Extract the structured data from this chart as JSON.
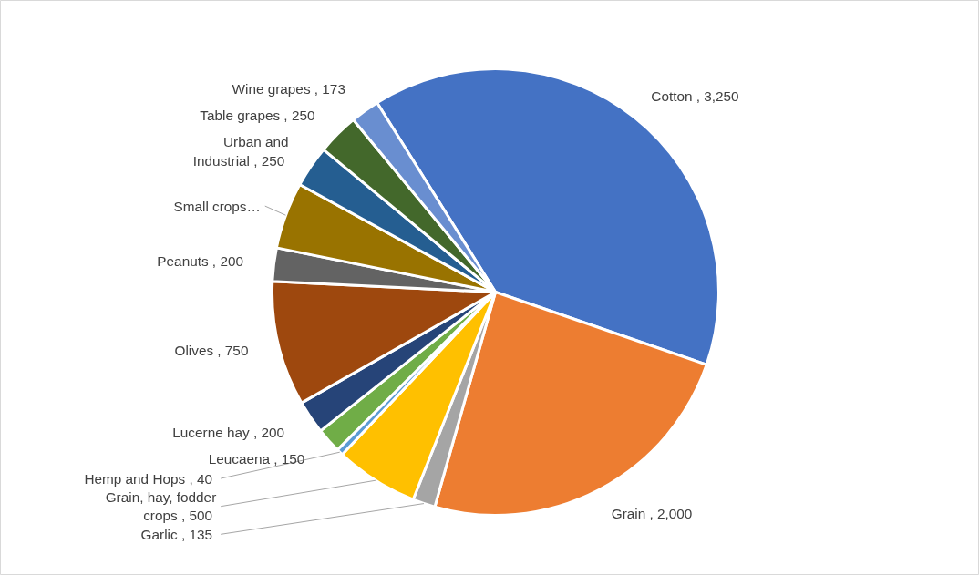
{
  "chart_data": {
    "type": "pie",
    "categories": [
      "Cotton",
      "Grain",
      "Garlic",
      "Grain, hay, fodder crops",
      "Hemp and Hops",
      "Leucaena",
      "Lucerne hay",
      "Olives",
      "Peanuts",
      "Small crops…",
      "Urban and Industrial",
      "Table grapes",
      "Wine grapes"
    ],
    "values": [
      3250,
      2000,
      135,
      500,
      40,
      150,
      200,
      750,
      200,
      400,
      250,
      250,
      173
    ],
    "value_labels": [
      "3,250",
      "2,000",
      "135",
      "500",
      "40",
      "150",
      "200",
      "750",
      "200",
      null,
      "250",
      "250",
      "173"
    ],
    "colors": [
      "#4472c4",
      "#ed7d31",
      "#a5a5a5",
      "#ffc000",
      "#5b9bd5",
      "#70ad47",
      "#264478",
      "#9e480e",
      "#636363",
      "#997300",
      "#255e91",
      "#43682b",
      "#698ed0"
    ]
  }
}
